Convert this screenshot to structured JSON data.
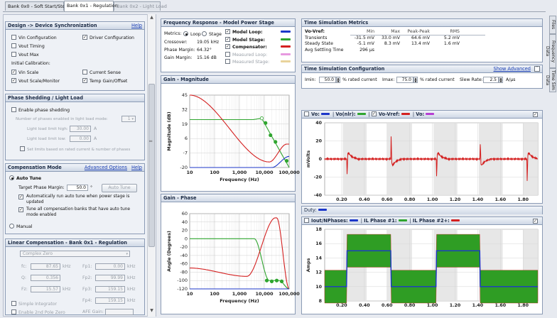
{
  "tabs": [
    {
      "label": "Bank 0x0 - Soft Start/Stop"
    },
    {
      "label": "Bank 0x1 - Regulation"
    },
    {
      "label": "Bank 0x2 - Light Load"
    }
  ],
  "side_tabs": [
    {
      "label": "Files"
    },
    {
      "label": "Frequency Data"
    },
    {
      "label": "Time Sim Data"
    }
  ],
  "design": {
    "title": "Design -> Device Synchronization",
    "help": "Help",
    "checks": [
      {
        "label": "Vin Configuration",
        "checked": false
      },
      {
        "label": "Driver Configuration",
        "checked": true
      },
      {
        "label": "Vout Timing",
        "checked": false
      },
      {
        "label": "Vout Max",
        "checked": false
      }
    ],
    "initial_cal": "Initial Calibration:",
    "cal_checks": [
      {
        "label": "Vin Scale",
        "checked": true
      },
      {
        "label": "Current Sense",
        "checked": false
      },
      {
        "label": "Vout Scale/Monitor",
        "checked": true
      },
      {
        "label": "Temp Gain/Offset",
        "checked": true
      }
    ]
  },
  "phase": {
    "title": "Phase Shedding / Light Load",
    "enable": "Enable phase shedding",
    "num_label": "Number of phases enabled in light load mode:",
    "num_value": "1",
    "lim_high_label": "Light load limit high:",
    "lim_high": "30.00",
    "lim_low_label": "Light load limit low:",
    "lim_low": "0.00",
    "unit": "A",
    "set_limits": "Set limits based on rated current & number of phases"
  },
  "comp": {
    "title": "Compensation Mode",
    "adv": "Advanced Options",
    "help": "Help",
    "auto_tune": "Auto Tune",
    "target_label": "Target Phase Margin:",
    "target_value": "50.0",
    "deg": "°",
    "auto_btn": "Auto Tune",
    "opt1": "Automatically run auto tune when power stage is updated",
    "opt2": "Tune all compensation banks that have auto tune mode enabled",
    "manual": "Manual"
  },
  "linear": {
    "title": "Linear Compensation - Bank 0x1 - Regulation",
    "select": "Complex Zero",
    "rows": [
      {
        "l1": "fc:",
        "v1": "87.65",
        "u1": "kHz",
        "l2": "Fp1:",
        "v2": "0.00",
        "u2": "kHz"
      },
      {
        "l1": "Q:",
        "v1": "0.356",
        "u1": "",
        "l2": "Fp2:",
        "v2": "99.99",
        "u2": "kHz"
      },
      {
        "l1": "Fz:",
        "v1": "15.57",
        "u1": "kHz",
        "l2": "Fp3:",
        "v2": "159.15",
        "u2": "kHz"
      },
      {
        "l1": "",
        "v1": "",
        "u1": "",
        "l2": "Fp4:",
        "v2": "159.15",
        "u2": "kHz"
      }
    ],
    "simple": "Simple Integrator",
    "enable_2nd": "Enable 2nd Pole Zero",
    "afe_label": "AFE Gain:"
  },
  "freq": {
    "title": "Frequency Response - Model Power Stage",
    "metrics_label": "Metrics:",
    "loop": "Loop",
    "stage": "Stage",
    "crossover_label": "Crossover:",
    "crossover": "19.05 kHz",
    "pm_label": "Phase Margin:",
    "pm": "64.32°",
    "gm_label": "Gain Margin:",
    "gm": "15.16 dB",
    "legend": [
      {
        "label": "Model Loop:",
        "checked": true,
        "color": "#1c37c9"
      },
      {
        "label": "Model Stage:",
        "checked": true,
        "color": "#2fa52f"
      },
      {
        "label": "Compensator:",
        "checked": true,
        "color": "#d42020"
      },
      {
        "label": "Measured Loop:",
        "checked": false,
        "color": "#e79ae0"
      },
      {
        "label": "Measured Stage:",
        "checked": false,
        "color": "#e9d39b"
      }
    ]
  },
  "gain_mag": {
    "title": "Gain - Magnitude",
    "ylabel": "Magnitude (dB)",
    "xlabel": "Frequency (Hz)",
    "yticks": [
      "45",
      "32",
      "19",
      "6",
      "-7",
      "-20"
    ],
    "xticks": [
      "10",
      "100",
      "1,000",
      "10,000",
      "100,000"
    ]
  },
  "gain_phase": {
    "title": "Gain - Phase",
    "ylabel": "Angle (Degrees)",
    "xlabel": "Frequency (Hz)",
    "yticks": [
      "60",
      "40",
      "20",
      "0",
      "-20",
      "-40",
      "-60",
      "-80",
      "-100",
      "-120"
    ],
    "xticks": [
      "10",
      "100",
      "1,000",
      "10,000",
      "100,000"
    ]
  },
  "metrics": {
    "title": "Time Simulation Metrics",
    "headers": [
      "Vo-Vref:",
      "Min",
      "Max",
      "Peak-Peak",
      "RMS"
    ],
    "rows": [
      [
        "Transients",
        "-31.5 mV",
        "33.0 mV",
        "64.6 mV",
        "5.2 mV"
      ],
      [
        "Steady State",
        "-5.1 mV",
        "8.3 mV",
        "13.4 mV",
        "1.6 mV"
      ],
      [
        "Avg Settling Time",
        "296 µs",
        "",
        "",
        ""
      ]
    ]
  },
  "config": {
    "title": "Time Simulation Configuration",
    "show_adv": "Show Advanced",
    "imin_label": "Imin:",
    "imin": "50.0",
    "imin_unit": "% rated current",
    "imax_label": "Imax:",
    "imax": "75.0",
    "imax_unit": "% rated current",
    "slew_label": "Slew Rate:",
    "slew": "2.5",
    "slew_unit": "A/µs"
  },
  "vo_chart": {
    "legend": [
      {
        "label": "Vo:",
        "color": "#1c37c9"
      },
      {
        "label": "Vo(nlr):",
        "color": "#2fa52f"
      },
      {
        "label": "Vo-Vref:",
        "color": "#d42020",
        "checked": true
      },
      {
        "label": "Vo:",
        "color": "#b53ed3"
      }
    ],
    "ylabel": "mVolts",
    "yticks": [
      "40",
      "20",
      "0",
      "-20",
      "-40"
    ],
    "xticks": [
      "0.20",
      "0.40",
      "0.60",
      "0.80",
      "1.00",
      "1.20",
      "1.40",
      "1.60",
      "1.80"
    ]
  },
  "duty": {
    "label": "Duty:",
    "color": "#1c37c9"
  },
  "iout_chart": {
    "legend": [
      {
        "label": "Iout/NPhases:",
        "color": "#1c37c9"
      },
      {
        "label": "IL Phase #1:",
        "color": "#2fa52f"
      },
      {
        "label": "IL Phase #2+:",
        "color": "#d42020"
      }
    ],
    "ylabel": "Amps",
    "yticks": [
      "18",
      "16",
      "14",
      "12",
      "10",
      "8"
    ],
    "xticks": [
      "0.20",
      "0.40",
      "0.60",
      "0.80",
      "1.00",
      "1.20",
      "1.40",
      "1.60",
      "1.80"
    ]
  }
}
